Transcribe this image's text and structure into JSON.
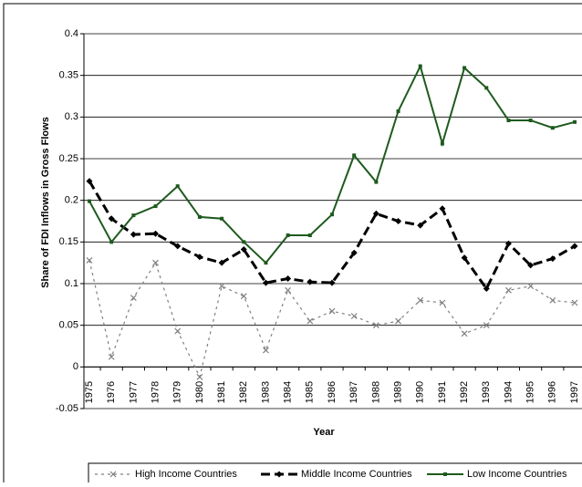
{
  "chart_data": {
    "type": "line",
    "y_label": "Share of FDI Inflows in Gross Flows",
    "x_label": "Year",
    "categories": [
      "1975",
      "1976",
      "1977",
      "1978",
      "1979",
      "1980",
      "1981",
      "1982",
      "1983",
      "1984",
      "1985",
      "1986",
      "1987",
      "1988",
      "1989",
      "1990",
      "1991",
      "1992",
      "1993",
      "1994",
      "1995",
      "1996",
      "1997"
    ],
    "series": [
      {
        "name": "High Income Countries",
        "color": "#808080",
        "values": [
          0.128,
          0.012,
          0.083,
          0.125,
          0.043,
          -0.012,
          0.097,
          0.085,
          0.02,
          0.092,
          0.055,
          0.067,
          0.061,
          0.05,
          0.055,
          0.08,
          0.077,
          0.04,
          0.05,
          0.092,
          0.097,
          0.08,
          0.077
        ]
      },
      {
        "name": "Middle Income Countries",
        "color": "#000000",
        "values": [
          0.223,
          0.178,
          0.159,
          0.16,
          0.145,
          0.132,
          0.125,
          0.141,
          0.101,
          0.106,
          0.102,
          0.101,
          0.137,
          0.184,
          0.175,
          0.17,
          0.19,
          0.131,
          0.094,
          0.148,
          0.122,
          0.13,
          0.145
        ]
      },
      {
        "name": "Low Income Countries",
        "color": "#1e5a1e",
        "values": [
          0.199,
          0.15,
          0.182,
          0.193,
          0.217,
          0.18,
          0.178,
          0.15,
          0.125,
          0.158,
          0.158,
          0.183,
          0.254,
          0.222,
          0.307,
          0.361,
          0.268,
          0.359,
          0.335,
          0.296,
          0.296,
          0.287,
          0.294
        ]
      }
    ],
    "ylim": [
      -0.05,
      0.4
    ],
    "yticks": [
      -0.05,
      0,
      0.05,
      0.1,
      0.15,
      0.2,
      0.25,
      0.3,
      0.35,
      0.4
    ],
    "grid": true,
    "legend": "bottom"
  }
}
